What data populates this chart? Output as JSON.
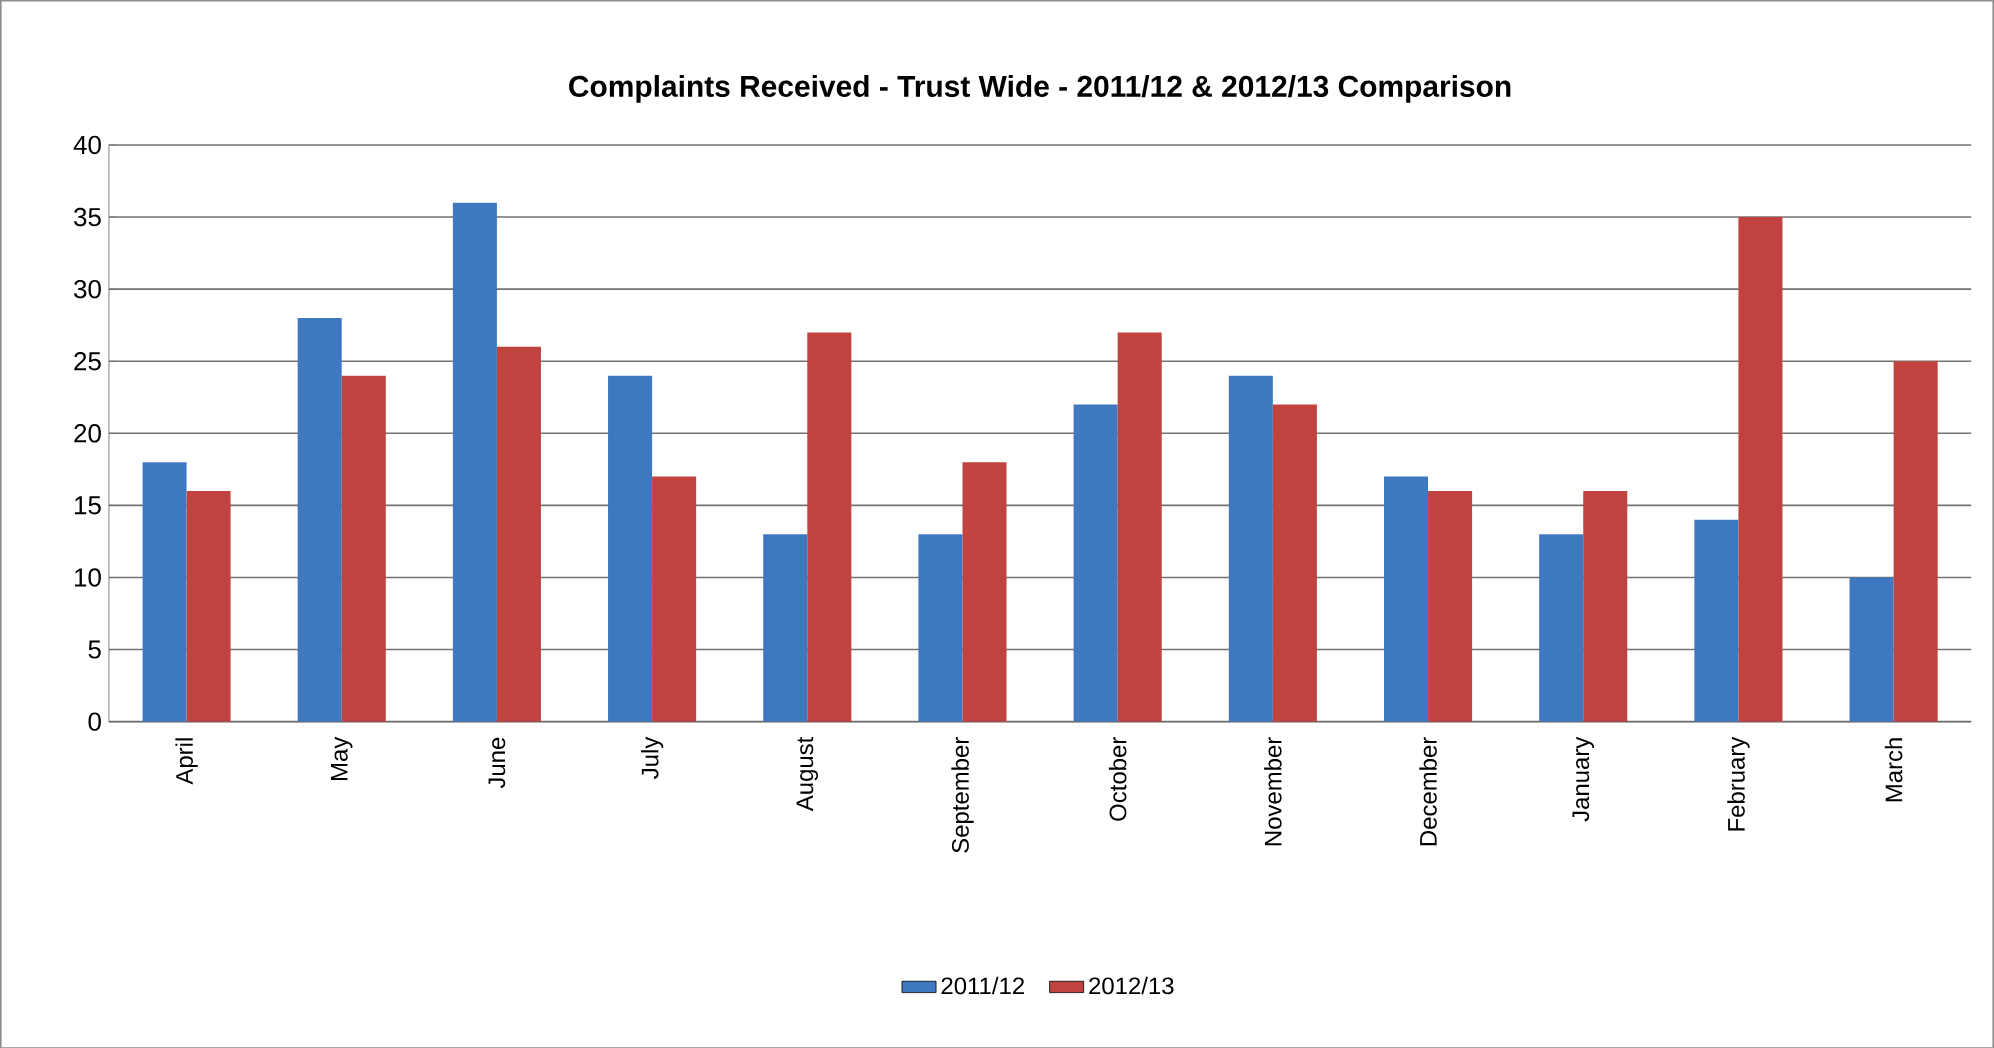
{
  "chart_data": {
    "type": "bar",
    "title": "Complaints Received  - Trust Wide - 2011/12 & 2012/13 Comparison",
    "categories": [
      "April",
      "May",
      "June",
      "July",
      "August",
      "September",
      "October",
      "November",
      "December",
      "January",
      "February",
      "March"
    ],
    "series": [
      {
        "name": "2011/12",
        "color": "#3d78c1",
        "values": [
          18,
          28,
          36,
          24,
          13,
          13,
          22,
          24,
          17,
          13,
          14,
          10
        ]
      },
      {
        "name": "2012/13",
        "color": "#c0433f",
        "values": [
          16,
          24,
          26,
          17,
          27,
          18,
          27,
          22,
          16,
          16,
          35,
          25
        ]
      }
    ],
    "ylim": [
      0,
      40
    ],
    "yticks": [
      0,
      5,
      10,
      15,
      20,
      25,
      30,
      35,
      40
    ],
    "grid": "y",
    "legend": "bottom"
  }
}
